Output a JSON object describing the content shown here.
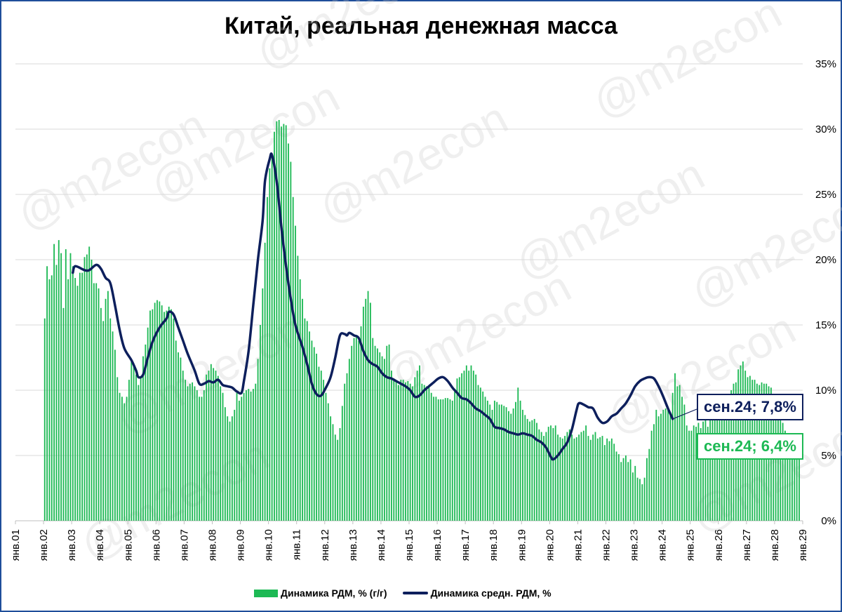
{
  "chart_data": {
    "type": "bar",
    "title": "Китай, реальная денежная масса",
    "y_unit": "%",
    "ylim": [
      0,
      35
    ],
    "yticks": [
      "0%",
      "5%",
      "10%",
      "15%",
      "20%",
      "25%",
      "30%",
      "35%"
    ],
    "xtick_labels": [
      "янв.01",
      "янв.02",
      "янв.03",
      "янв.04",
      "янв.05",
      "янв.06",
      "янв.07",
      "янв.08",
      "янв.09",
      "янв.10",
      "янв.11",
      "янв.12",
      "янв.13",
      "янв.14",
      "янв.15",
      "янв.16",
      "янв.17",
      "янв.18",
      "янв.19",
      "янв.20",
      "янв.21",
      "янв.22",
      "янв.23",
      "янв.24",
      "янв.25",
      "янв.26",
      "янв.27",
      "янв.28",
      "янв.29"
    ],
    "x_range": [
      "янв.01",
      "янв.29"
    ],
    "grid": true,
    "legend_position": "bottom",
    "series": [
      {
        "name": "Динамика РДМ, % (г/г)",
        "type": "bar",
        "color": "#1db954",
        "x_start": "янв.02",
        "x_step": "month",
        "values": [
          15.5,
          19.5,
          18.5,
          18.8,
          21.2,
          19.6,
          21.5,
          20.5,
          16.3,
          20.8,
          18.5,
          20.5,
          19.5,
          18.6,
          18.0,
          19.0,
          19.0,
          20.2,
          20.4,
          21.0,
          20.0,
          18.2,
          18.2,
          17.8,
          16.3,
          15.3,
          17.0,
          17.6,
          15.5,
          14.5,
          13.1,
          11.0,
          9.8,
          9.5,
          9.0,
          9.5,
          10.8,
          12.3,
          12.0,
          11.2,
          10.4,
          11.0,
          12.6,
          13.5,
          14.8,
          16.1,
          16.2,
          16.7,
          16.9,
          16.8,
          16.5,
          16.0,
          16.1,
          16.4,
          16.2,
          15.5,
          13.8,
          12.9,
          12.5,
          11.5,
          10.8,
          10.3,
          10.5,
          10.6,
          10.3,
          10.0,
          9.5,
          9.5,
          10.0,
          11.2,
          11.5,
          12.0,
          11.7,
          11.5,
          11.1,
          10.3,
          9.8,
          8.7,
          8.0,
          7.6,
          8.0,
          8.5,
          9.8,
          9.2,
          9.5,
          9.8,
          10.0,
          10.1,
          9.9,
          10.1,
          10.5,
          12.4,
          15.0,
          17.8,
          21.3,
          24.8,
          27.0,
          27.8,
          29.8,
          30.6,
          30.7,
          30.2,
          30.4,
          30.3,
          28.9,
          27.5,
          24.8,
          22.6,
          20.3,
          18.5,
          17.0,
          15.5,
          15.3,
          14.5,
          13.8,
          13.3,
          12.8,
          11.8,
          11.5,
          10.8,
          9.8,
          9.0,
          8.0,
          7.4,
          6.6,
          6.2,
          7.1,
          8.8,
          10.5,
          11.3,
          12.4,
          13.4,
          14.0,
          14.1,
          13.8,
          14.9,
          16.4,
          17.0,
          17.6,
          16.7,
          14.0,
          13.4,
          13.2,
          12.9,
          12.6,
          12.4,
          13.4,
          13.5,
          11.5,
          10.9,
          10.7,
          10.4,
          10.8,
          10.8,
          10.6,
          10.7,
          10.5,
          10.3,
          11.0,
          11.5,
          11.9,
          10.5,
          10.4,
          10.3,
          10.2,
          9.8,
          9.5,
          9.5,
          9.3,
          9.3,
          9.3,
          9.4,
          9.4,
          9.3,
          9.2,
          10.1,
          10.9,
          11.0,
          11.3,
          11.5,
          11.9,
          11.5,
          11.9,
          11.5,
          11.2,
          10.4,
          10.2,
          9.9,
          9.5,
          9.2,
          8.9,
          8.5,
          9.2,
          9.1,
          8.9,
          8.9,
          8.8,
          8.7,
          8.4,
          8.2,
          8.6,
          9.1,
          10.2,
          9.2,
          8.5,
          8.1,
          7.8,
          7.6,
          7.7,
          7.8,
          7.5,
          7.0,
          6.8,
          6.5,
          6.8,
          7.2,
          7.3,
          7.1,
          7.3,
          6.6,
          6.4,
          6.3,
          6.5,
          6.8,
          7.0,
          6.6,
          6.3,
          6.4,
          6.6,
          6.8,
          6.9,
          7.3,
          6.5,
          6.2,
          6.6,
          6.8,
          6.3,
          6.4,
          6.5,
          5.8,
          6.3,
          6.1,
          6.3,
          5.9,
          5.3,
          5.1,
          4.5,
          4.8,
          5.0,
          4.5,
          4.7,
          3.7,
          4.2,
          3.3,
          3.2,
          2.8,
          3.3,
          4.8,
          5.5,
          6.9,
          7.4,
          8.5,
          8.0,
          8.2,
          8.5,
          8.6,
          8.5,
          8.2,
          9.8,
          11.3,
          10.3,
          10.4,
          9.5,
          8.9,
          7.3,
          6.9,
          6.9,
          7.3,
          7.2,
          7.5,
          7.1,
          7.6,
          7.8,
          7.2,
          8.8,
          8.4,
          8.4,
          8.5,
          8.8,
          8.8,
          9.2,
          9.6,
          9.6,
          10.0,
          10.5,
          10.6,
          11.6,
          11.9,
          12.2,
          11.5,
          11.0,
          11.1,
          10.8,
          10.8,
          10.5,
          10.4,
          10.6,
          10.5,
          10.5,
          10.3,
          10.2,
          9.3,
          8.8,
          8.4,
          8.1,
          7.5,
          6.9,
          6.7,
          6.0,
          5.9,
          5.8,
          5.6,
          6.4
        ]
      },
      {
        "name": "Динамика средн. РДМ, %",
        "type": "line",
        "color": "#0d1f5c",
        "points": [
          [
            "2003-01",
            19.0
          ],
          [
            "2003-02",
            19.5
          ],
          [
            "2003-06",
            19.2
          ],
          [
            "2003-08",
            19.2
          ],
          [
            "2003-11",
            19.6
          ],
          [
            "2004-01",
            19.3
          ],
          [
            "2004-03",
            18.6
          ],
          [
            "2004-05",
            18.2
          ],
          [
            "2004-07",
            16.5
          ],
          [
            "2004-09",
            14.6
          ],
          [
            "2004-11",
            13.2
          ],
          [
            "2005-02",
            12.3
          ],
          [
            "2005-04",
            11.5
          ],
          [
            "2005-05",
            11.0
          ],
          [
            "2005-07",
            11.2
          ],
          [
            "2005-09",
            12.5
          ],
          [
            "2005-11",
            13.7
          ],
          [
            "2006-02",
            14.8
          ],
          [
            "2006-05",
            15.5
          ],
          [
            "2006-06",
            16.0
          ],
          [
            "2006-08",
            15.8
          ],
          [
            "2006-10",
            14.8
          ],
          [
            "2006-12",
            13.8
          ],
          [
            "2007-02",
            12.8
          ],
          [
            "2007-05",
            11.5
          ],
          [
            "2007-07",
            10.5
          ],
          [
            "2007-09",
            10.5
          ],
          [
            "2007-11",
            10.7
          ],
          [
            "2008-01",
            10.6
          ],
          [
            "2008-03",
            10.8
          ],
          [
            "2008-05",
            10.4
          ],
          [
            "2008-07",
            10.3
          ],
          [
            "2008-09",
            10.2
          ],
          [
            "2008-11",
            9.9
          ],
          [
            "2009-01",
            9.8
          ],
          [
            "2009-02",
            10.7
          ],
          [
            "2009-04",
            13.0
          ],
          [
            "2009-06",
            16.5
          ],
          [
            "2009-08",
            20.0
          ],
          [
            "2009-10",
            23.0
          ],
          [
            "2009-11",
            26.0
          ],
          [
            "2010-01",
            27.7
          ],
          [
            "2010-02",
            28.0
          ],
          [
            "2010-04",
            26.0
          ],
          [
            "2010-06",
            22.5
          ],
          [
            "2010-08",
            19.5
          ],
          [
            "2010-10",
            17.0
          ],
          [
            "2010-12",
            15.0
          ],
          [
            "2011-03",
            13.3
          ],
          [
            "2011-05",
            12.0
          ],
          [
            "2011-07",
            10.5
          ],
          [
            "2011-09",
            9.7
          ],
          [
            "2011-11",
            9.6
          ],
          [
            "2012-01",
            10.2
          ],
          [
            "2012-03",
            11.0
          ],
          [
            "2012-05",
            12.5
          ],
          [
            "2012-07",
            14.2
          ],
          [
            "2012-09",
            14.3
          ],
          [
            "2012-10",
            14.2
          ],
          [
            "2012-11",
            14.4
          ],
          [
            "2013-01",
            14.2
          ],
          [
            "2013-03",
            14.0
          ],
          [
            "2013-05",
            13.0
          ],
          [
            "2013-07",
            12.3
          ],
          [
            "2013-09",
            12.0
          ],
          [
            "2013-11",
            11.8
          ],
          [
            "2014-01",
            11.3
          ],
          [
            "2014-03",
            11.0
          ],
          [
            "2014-05",
            10.9
          ],
          [
            "2014-07",
            10.7
          ],
          [
            "2014-09",
            10.5
          ],
          [
            "2014-11",
            10.3
          ],
          [
            "2015-01",
            10.0
          ],
          [
            "2015-03",
            9.5
          ],
          [
            "2015-05",
            9.6
          ],
          [
            "2015-07",
            10.0
          ],
          [
            "2015-09",
            10.3
          ],
          [
            "2015-11",
            10.6
          ],
          [
            "2016-01",
            10.9
          ],
          [
            "2016-03",
            11.0
          ],
          [
            "2016-05",
            10.7
          ],
          [
            "2016-07",
            10.2
          ],
          [
            "2016-09",
            9.8
          ],
          [
            "2016-11",
            9.4
          ],
          [
            "2017-01",
            9.3
          ],
          [
            "2017-03",
            9.0
          ],
          [
            "2017-05",
            8.6
          ],
          [
            "2017-07",
            8.4
          ],
          [
            "2017-09",
            8.1
          ],
          [
            "2017-11",
            7.8
          ],
          [
            "2018-01",
            7.2
          ],
          [
            "2018-03",
            7.1
          ],
          [
            "2018-05",
            7.0
          ],
          [
            "2018-07",
            6.8
          ],
          [
            "2018-09",
            6.7
          ],
          [
            "2018-11",
            6.6
          ],
          [
            "2019-01",
            6.7
          ],
          [
            "2019-03",
            6.6
          ],
          [
            "2019-05",
            6.5
          ],
          [
            "2019-07",
            6.2
          ],
          [
            "2019-09",
            6.0
          ],
          [
            "2019-11",
            5.6
          ],
          [
            "2020-01",
            4.9
          ],
          [
            "2020-02",
            4.7
          ],
          [
            "2020-04",
            5.0
          ],
          [
            "2020-06",
            5.5
          ],
          [
            "2020-08",
            6.0
          ],
          [
            "2020-10",
            7.0
          ],
          [
            "2020-12",
            8.5
          ],
          [
            "2021-01",
            9.0
          ],
          [
            "2021-03",
            8.9
          ],
          [
            "2021-05",
            8.7
          ],
          [
            "2021-07",
            8.6
          ],
          [
            "2021-09",
            7.9
          ],
          [
            "2021-11",
            7.5
          ],
          [
            "2022-01",
            7.6
          ],
          [
            "2022-03",
            8.0
          ],
          [
            "2022-05",
            8.2
          ],
          [
            "2022-07",
            8.6
          ],
          [
            "2022-09",
            9.0
          ],
          [
            "2022-11",
            9.6
          ],
          [
            "2023-01",
            10.3
          ],
          [
            "2023-03",
            10.7
          ],
          [
            "2023-05",
            10.9
          ],
          [
            "2023-07",
            11.0
          ],
          [
            "2023-09",
            10.9
          ],
          [
            "2023-11",
            10.3
          ],
          [
            "2024-01",
            9.5
          ],
          [
            "2024-03",
            8.6
          ],
          [
            "2024-05",
            7.8
          ]
        ]
      }
    ],
    "callouts": {
      "line": "сен.24; 7,8%",
      "bar": "сен.24; 6,4%"
    },
    "watermark": "@m2econ"
  }
}
